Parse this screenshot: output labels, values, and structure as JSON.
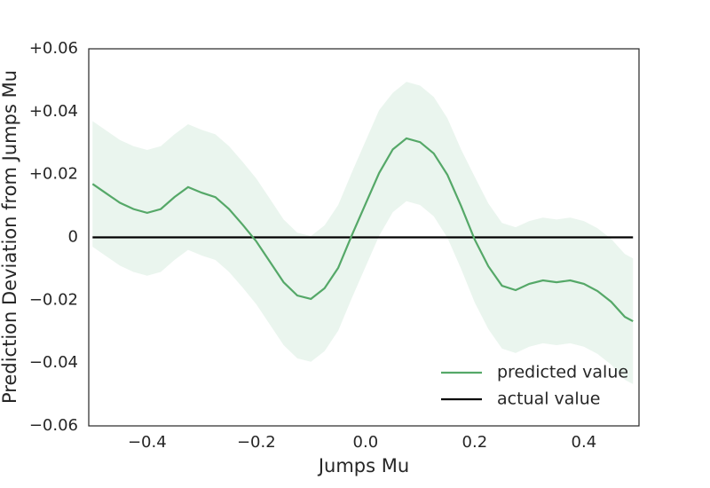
{
  "chart_data": {
    "type": "line",
    "xlabel": "Jumps Mu",
    "ylabel": "Prediction Deviation from Jumps Mu",
    "xlim": [
      -0.507,
      0.501
    ],
    "ylim": [
      -0.06,
      0.06
    ],
    "xticks": [
      {
        "value": -0.4,
        "label": "−0.4"
      },
      {
        "value": -0.2,
        "label": "−0.2"
      },
      {
        "value": 0,
        "label": "0.0"
      },
      0.2,
      0.4
    ],
    "yticks": [
      {
        "value": -0.06,
        "label": "−0.06"
      },
      {
        "value": -0.04,
        "label": "−0.04"
      },
      {
        "value": -0.02,
        "label": "−0.02"
      },
      0,
      {
        "value": 0.02,
        "label": "+0.02"
      },
      {
        "value": 0.04,
        "label": "+0.04"
      },
      {
        "value": 0.06,
        "label": "+0.06"
      }
    ],
    "legend": "lower right",
    "x": [
      -0.5,
      -0.475,
      -0.45,
      -0.425,
      -0.4,
      -0.375,
      -0.35,
      -0.325,
      -0.3,
      -0.275,
      -0.25,
      -0.225,
      -0.2,
      -0.175,
      -0.15,
      -0.125,
      -0.1,
      -0.075,
      -0.05,
      -0.025,
      0,
      0.025,
      0.05,
      0.075,
      0.1,
      0.125,
      0.15,
      0.175,
      0.2,
      0.225,
      0.25,
      0.275,
      0.3,
      0.325,
      0.35,
      0.375,
      0.4,
      0.425,
      0.45,
      0.475,
      0.49
    ],
    "band": {
      "color": "#eaf5ee",
      "upper": [
        0.037,
        0.034,
        0.031,
        0.029,
        0.0278,
        0.029,
        0.0328,
        0.036,
        0.0342,
        0.0328,
        0.029,
        0.024,
        0.0187,
        0.0122,
        0.0057,
        0.0015,
        0.0004,
        0.0038,
        0.0103,
        0.0207,
        0.0306,
        0.0405,
        0.046,
        0.0495,
        0.0483,
        0.0447,
        0.0379,
        0.028,
        0.0193,
        0.0108,
        0.0046,
        0.0032,
        0.0052,
        0.0063,
        0.0057,
        0.0063,
        0.0052,
        0.0029,
        -0.0005,
        -0.0053,
        -0.0067
      ],
      "lower": [
        -0.003,
        -0.006,
        -0.009,
        -0.011,
        -0.0122,
        -0.011,
        -0.0072,
        -0.004,
        -0.0058,
        -0.0072,
        -0.011,
        -0.016,
        -0.0213,
        -0.0278,
        -0.0343,
        -0.0385,
        -0.0396,
        -0.0362,
        -0.0297,
        -0.0193,
        -0.0094,
        0.0005,
        0.008,
        0.0115,
        0.0103,
        0.0067,
        -0.0001,
        -0.01,
        -0.0207,
        -0.0292,
        -0.0354,
        -0.0368,
        -0.0348,
        -0.0337,
        -0.0343,
        -0.0337,
        -0.0348,
        -0.0371,
        -0.0405,
        -0.0453,
        -0.0467
      ]
    },
    "series": [
      {
        "name": "predicted value",
        "color": "#55a868",
        "values": [
          0.017,
          0.014,
          0.011,
          0.009,
          0.0078,
          0.009,
          0.0128,
          0.016,
          0.0142,
          0.0128,
          0.009,
          0.004,
          -0.0013,
          -0.0078,
          -0.0143,
          -0.0185,
          -0.0196,
          -0.0162,
          -0.0097,
          0.0007,
          0.0106,
          0.0205,
          0.028,
          0.0315,
          0.0303,
          0.0267,
          0.0199,
          0.01,
          -0.0007,
          -0.0092,
          -0.0154,
          -0.0168,
          -0.0148,
          -0.0137,
          -0.0143,
          -0.0137,
          -0.0148,
          -0.0171,
          -0.0205,
          -0.0253,
          -0.0267
        ]
      },
      {
        "name": "actual value",
        "color": "#000000",
        "values": [
          0,
          0,
          0,
          0,
          0,
          0,
          0,
          0,
          0,
          0,
          0,
          0,
          0,
          0,
          0,
          0,
          0,
          0,
          0,
          0,
          0,
          0,
          0,
          0,
          0,
          0,
          0,
          0,
          0,
          0,
          0,
          0,
          0,
          0,
          0,
          0,
          0,
          0,
          0,
          0,
          0
        ]
      }
    ]
  }
}
